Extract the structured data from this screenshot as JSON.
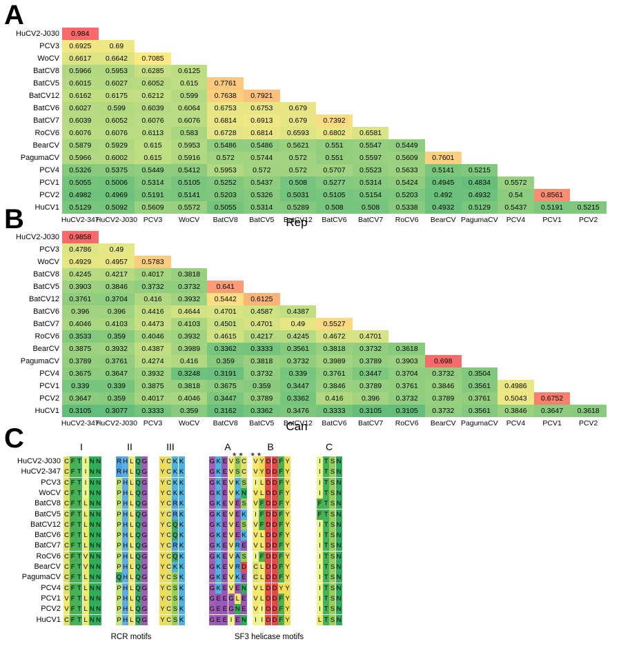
{
  "panel_a": {
    "letter": "A",
    "title": "Rep",
    "row_labels": [
      "HuCV2-J030",
      "PCV3",
      "WoCV",
      "BatCV8",
      "BatCV5",
      "BatCV12",
      "BatCV6",
      "BatCV7",
      "RoCV6",
      "BearCV",
      "PagumaCV",
      "PCV4",
      "PCV1",
      "PCV2",
      "HuCV1"
    ],
    "col_labels": [
      "HuCV2-347",
      "HuCV2-J030",
      "PCV3",
      "WoCV",
      "BatCV8",
      "BatCV5",
      "BatCV12",
      "BatCV6",
      "BatCV7",
      "RoCV6",
      "BearCV",
      "PagumaCV",
      "PCV4",
      "PCV1",
      "PCV2"
    ],
    "rows": [
      [
        "0.984"
      ],
      [
        "0.6925",
        "0.69"
      ],
      [
        "0.6617",
        "0.6642",
        "0.7085"
      ],
      [
        "0.5966",
        "0.5953",
        "0.6285",
        "0.6125"
      ],
      [
        "0.6015",
        "0.6027",
        "0.6052",
        "0.615",
        "0.7761"
      ],
      [
        "0.6162",
        "0.6175",
        "0.6212",
        "0.599",
        "0.7638",
        "0.7921"
      ],
      [
        "0.6027",
        "0.599",
        "0.6039",
        "0.6064",
        "0.6753",
        "0.6753",
        "0.679"
      ],
      [
        "0.6039",
        "0.6052",
        "0.6076",
        "0.6076",
        "0.6814",
        "0.6913",
        "0.679",
        "0.7392"
      ],
      [
        "0.6076",
        "0.6076",
        "0.6113",
        "0.583",
        "0.6728",
        "0.6814",
        "0.6593",
        "0.6802",
        "0.6581"
      ],
      [
        "0.5879",
        "0.5929",
        "0.615",
        "0.5953",
        "0.5486",
        "0.5486",
        "0.5621",
        "0.551",
        "0.5547",
        "0.5449"
      ],
      [
        "0.5966",
        "0.6002",
        "0.615",
        "0.5916",
        "0.572",
        "0.5744",
        "0.572",
        "0.551",
        "0.5597",
        "0.5609",
        "0.7601"
      ],
      [
        "0.5326",
        "0.5375",
        "0.5449",
        "0.5412",
        "0.5953",
        "0.572",
        "0.572",
        "0.5707",
        "0.5523",
        "0.5633",
        "0.5141",
        "0.5215"
      ],
      [
        "0.5055",
        "0.5006",
        "0.5314",
        "0.5105",
        "0.5252",
        "0.5437",
        "0.508",
        "0.5277",
        "0.5314",
        "0.5424",
        "0.4945",
        "0.4834",
        "0.5572"
      ],
      [
        "0.4982",
        "0.4969",
        "0.5191",
        "0.5141",
        "0.5203",
        "0.5326",
        "0.5031",
        "0.5105",
        "0.5154",
        "0.5203",
        "0.492",
        "0.4932",
        "0.54",
        "0.8561"
      ],
      [
        "0.5129",
        "0.5092",
        "0.5609",
        "0.5572",
        "0.5055",
        "0.5314",
        "0.5289",
        "0.508",
        "0.508",
        "0.5338",
        "0.4932",
        "0.5129",
        "0.5437",
        "0.5191",
        "0.5215"
      ]
    ]
  },
  "panel_b": {
    "letter": "B",
    "title": "Can",
    "row_labels": [
      "HuCV2-J030",
      "PCV3",
      "WoCV",
      "BatCV8",
      "BatCV5",
      "BatCV12",
      "BatCV6",
      "BatCV7",
      "RoCV6",
      "BearCV",
      "PagumaCV",
      "PCV4",
      "PCV1",
      "PCV2",
      "HuCV1"
    ],
    "col_labels": [
      "HuCV2-347",
      "HuCV2-J030",
      "PCV3",
      "WoCV",
      "BatCV8",
      "BatCV5",
      "BatCV12",
      "BatCV6",
      "BatCV7",
      "RoCV6",
      "BearCV",
      "PagumaCV",
      "PCV4",
      "PCV1",
      "PCV2"
    ],
    "rows": [
      [
        "0.9858"
      ],
      [
        "0.4786",
        "0.49"
      ],
      [
        "0.4929",
        "0.4957",
        "0.5783"
      ],
      [
        "0.4245",
        "0.4217",
        "0.4017",
        "0.3818"
      ],
      [
        "0.3903",
        "0.3846",
        "0.3732",
        "0.3732",
        "0.641"
      ],
      [
        "0.3761",
        "0.3704",
        "0.416",
        "0.3932",
        "0.5442",
        "0.6125"
      ],
      [
        "0.396",
        "0.396",
        "0.4416",
        "0.4644",
        "0.4701",
        "0.4587",
        "0.4387"
      ],
      [
        "0.4046",
        "0.4103",
        "0.4473",
        "0.4103",
        "0.4501",
        "0.4701",
        "0.49",
        "0.5527"
      ],
      [
        "0.3533",
        "0.359",
        "0.4046",
        "0.3932",
        "0.4615",
        "0.4217",
        "0.4245",
        "0.4672",
        "0.4701"
      ],
      [
        "0.3875",
        "0.3932",
        "0.4387",
        "0.3989",
        "0.3362",
        "0.3333",
        "0.3561",
        "0.3818",
        "0.3732",
        "0.3618"
      ],
      [
        "0.3789",
        "0.3761",
        "0.4274",
        "0.416",
        "0.359",
        "0.3818",
        "0.3732",
        "0.3989",
        "0.3789",
        "0.3903",
        "0.698"
      ],
      [
        "0.3675",
        "0.3647",
        "0.3932",
        "0.3248",
        "0.3191",
        "0.3732",
        "0.339",
        "0.3761",
        "0.3447",
        "0.3704",
        "0.3732",
        "0.3504"
      ],
      [
        "0.339",
        "0.339",
        "0.3875",
        "0.3818",
        "0.3675",
        "0.359",
        "0.3447",
        "0.3846",
        "0.3789",
        "0.3761",
        "0.3846",
        "0.3561",
        "0.4986"
      ],
      [
        "0.3647",
        "0.359",
        "0.4017",
        "0.4046",
        "0.3447",
        "0.3789",
        "0.3362",
        "0.416",
        "0.396",
        "0.3732",
        "0.3789",
        "0.3761",
        "0.5043",
        "0.6752"
      ],
      [
        "0.3105",
        "0.3077",
        "0.3333",
        "0.359",
        "0.3162",
        "0.3362",
        "0.3476",
        "0.3333",
        "0.3105",
        "0.3105",
        "0.3732",
        "0.3561",
        "0.3846",
        "0.3647",
        "0.3618"
      ]
    ]
  },
  "panel_c": {
    "letter": "C",
    "motif_labels": [
      "I",
      "II",
      "III",
      "A",
      "B",
      "C"
    ],
    "stars": "* *   * *",
    "group_labels": [
      "RCR motifs",
      "SF3 helicase motifs"
    ],
    "seq_names": [
      "HuCV2-J030",
      "HuCV2-347",
      "PCV3",
      "WoCV",
      "BatCV8",
      "BatCV5",
      "BatCV12",
      "BatCV6",
      "BatCV7",
      "RoCV6",
      "BearCV",
      "PagumaCV",
      "PCV4",
      "PCV1",
      "PCV2",
      "HuCV1"
    ],
    "motif_I": [
      "CFTINN",
      "CFTINN",
      "CFTINN",
      "CFTINN",
      "CFTLNN",
      "CFTLNN",
      "CFTLNN",
      "CFTLNN",
      "CFTLNN",
      "CFTVNN",
      "CFTVNN",
      "CFTLNN",
      "CFTLNN",
      "VFTLNN",
      "VFTLNN",
      "CFTLNN"
    ],
    "motif_II": [
      "RHLQG",
      "RHLQG",
      "PHLQG",
      "PHLQG",
      "PHLQG",
      "PHLQG",
      "PHLQG",
      "PHLQG",
      "PHLQG",
      "PHLQG",
      "PHLQG",
      "QHLQG",
      "PHLQG",
      "PHLQG",
      "PHLQG",
      "PHLQG"
    ],
    "motif_III": [
      "YCKK",
      "YCKK",
      "YCKK",
      "YCKK",
      "YCRK",
      "YCRK",
      "YCQK",
      "YCQK",
      "YCRK",
      "YCQK",
      "YCKK",
      "YCSK",
      "YCSK",
      "YCSK",
      "YCSK",
      "YCSK"
    ],
    "motif_A": [
      "GKEVSC",
      "GKEVSC",
      "GKEVKS",
      "GKEVKN",
      "GKEVES",
      "GKEVEK",
      "GKEVES",
      "GKEVEK",
      "GKEVRE",
      "GKEVAS",
      "GKEVRD",
      "GKEVKE",
      "GKEVEN",
      "GEEGLE",
      "GEEGNE",
      "GEEIEN"
    ],
    "motif_B": [
      "VYDDFY",
      "VYDDFY",
      "ILDDFY",
      "VLDDFY",
      "VFDDFY",
      "IFDDFY",
      "VFDDFY",
      "VLDDFY",
      "VLDDFY",
      "IFDDFY",
      "CLDDFY",
      "CLDDFY",
      "VLDDYY",
      "VLDDFY",
      "VIDDFY",
      "IIDDFY"
    ],
    "motif_C": [
      "ITSN",
      "ITSN",
      "ITSN",
      "ITSN",
      "FTSN",
      "FTSN",
      "ITSN",
      "ITSN",
      "ITSN",
      "ITSN",
      "ITSN",
      "ITSN",
      "ITSN",
      "ITSN",
      "ITSN",
      "LTSN"
    ]
  }
}
